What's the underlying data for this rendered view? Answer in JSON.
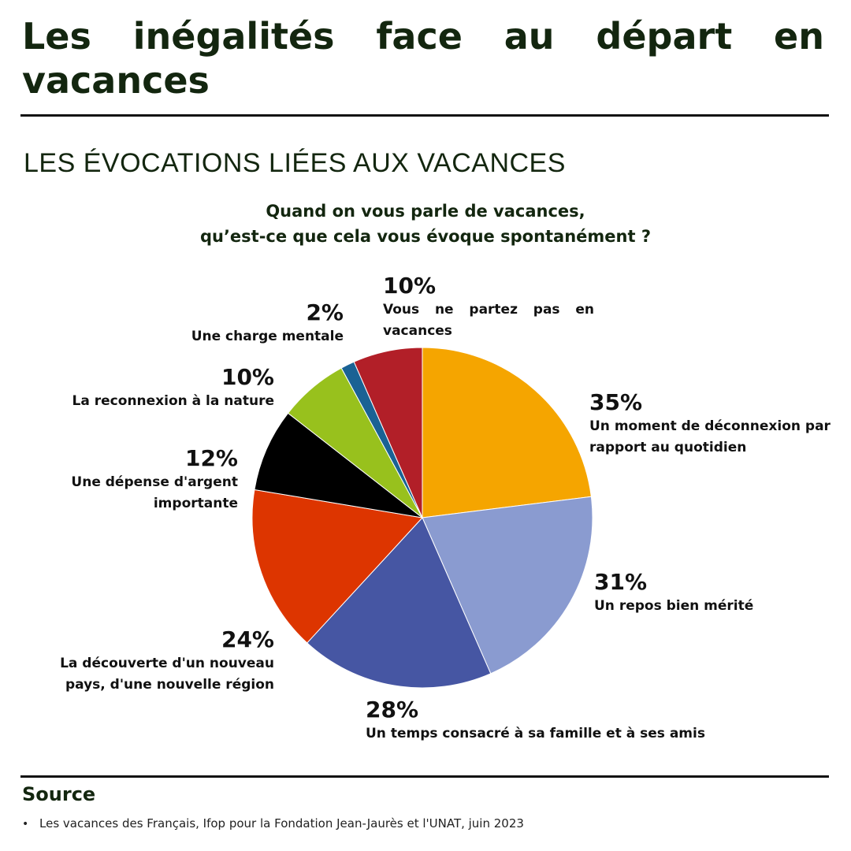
{
  "header": {
    "title": "Les inégalités face au départ en vacances"
  },
  "section": {
    "title": "LES ÉVOCATIONS LIÉES AUX VACANCES"
  },
  "question": {
    "line1": "Quand on vous parle de vacances,",
    "line2": "qu’est-ce que cela vous évoque spontanément ?"
  },
  "colors": {
    "title_green": "#13260f",
    "rule": "#111111"
  },
  "chart_data": {
    "type": "pie",
    "title": "Quand on vous parle de vacances, qu’est-ce que cela vous évoque spontanément ?",
    "unit": "%",
    "start": "12 o'clock",
    "direction": "clockwise",
    "slices": [
      {
        "label": "Un moment de déconnexion par rapport au quotidien",
        "value": 35,
        "display": "35%",
        "color": "#f5a500"
      },
      {
        "label": "Un repos bien mérité",
        "value": 31,
        "display": "31%",
        "color": "#8a9bd0"
      },
      {
        "label": "Un temps consacré à sa famille et à ses amis",
        "value": 28,
        "display": "28%",
        "color": "#4656a3"
      },
      {
        "label": "La découverte d'un nouveau pays, d'une nouvelle région",
        "value": 24,
        "display": "24%",
        "color": "#dd3500"
      },
      {
        "label": "Une dépense d'argent importante",
        "value": 12,
        "display": "12%",
        "color": "#000000"
      },
      {
        "label": "La reconnexion à la nature",
        "value": 10,
        "display": "10%",
        "color": "#98c11d"
      },
      {
        "label": "Une charge mentale",
        "value": 2,
        "display": "2%",
        "color": "#1a6294"
      },
      {
        "label": "Vous ne partez pas en vacances",
        "value": 10,
        "display": "10%",
        "color": "#b21f28"
      }
    ]
  },
  "source": {
    "title": "Source",
    "items": [
      "Les vacances des Français, Ifop pour la Fondation Jean-Jaurès et l'UNAT, juin 2023"
    ]
  }
}
